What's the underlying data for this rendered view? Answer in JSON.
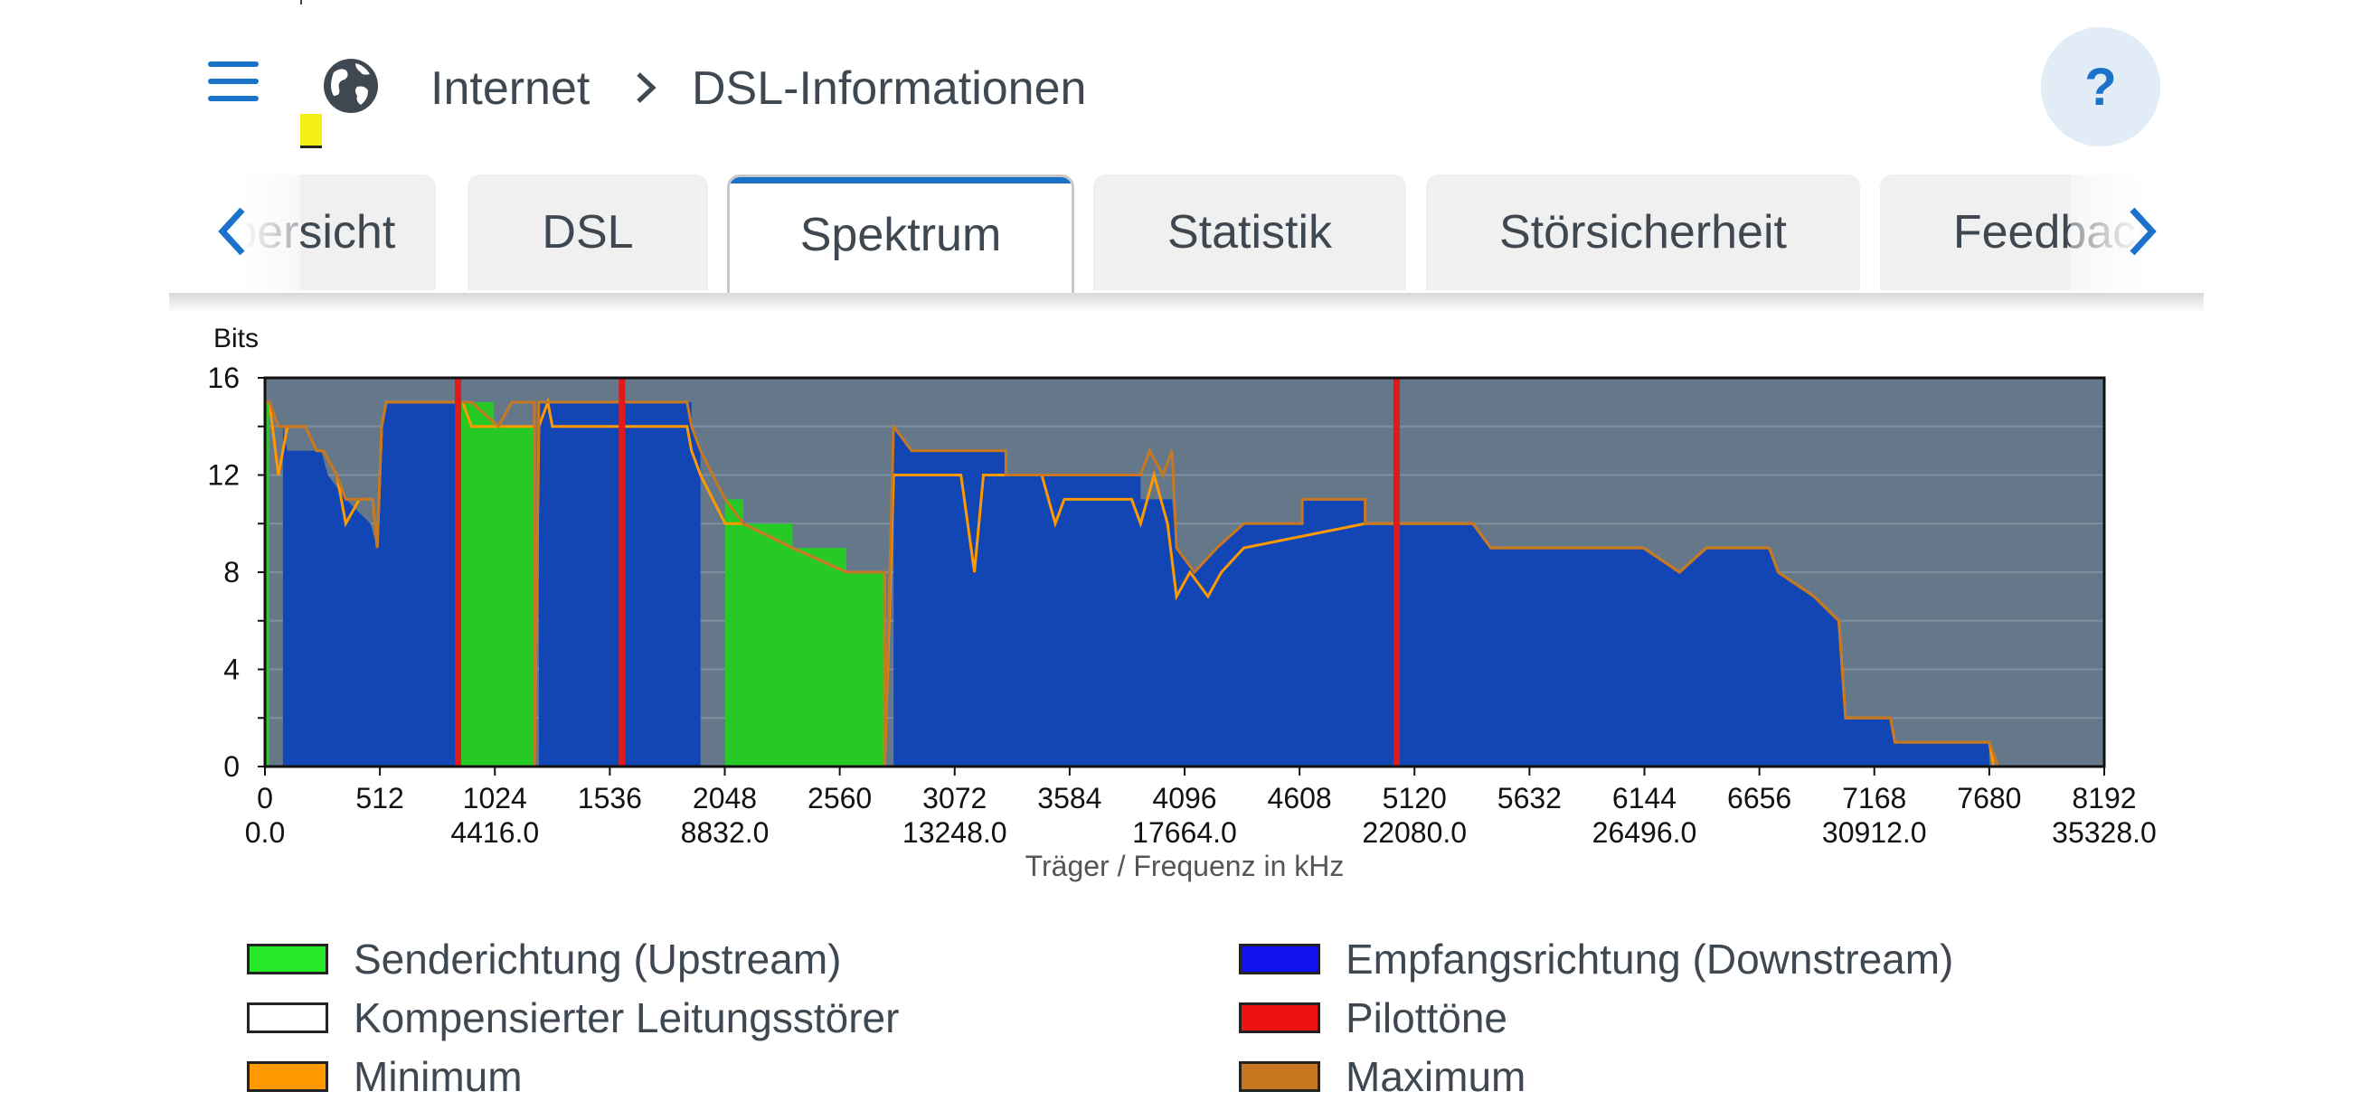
{
  "header": {
    "breadcrumb_home": "Internet",
    "breadcrumb_current": "DSL-Informationen",
    "help_label": "?"
  },
  "tabs": [
    {
      "label": "Übersicht",
      "active": false
    },
    {
      "label": "DSL",
      "active": false
    },
    {
      "label": "Spektrum",
      "active": true
    },
    {
      "label": "Statistik",
      "active": false
    },
    {
      "label": "Störsicherheit",
      "active": false
    },
    {
      "label": "Feedback",
      "active": false
    }
  ],
  "icons": [
    "menu-icon",
    "globe-icon",
    "chevron-right-icon",
    "chevron-left-icon",
    "help-icon"
  ],
  "colors": {
    "accent": "#1b73c9",
    "plot_bg": "#64788a",
    "upstream": "#27c927",
    "downstream": "#1246b4",
    "pilot": "#e01a1a",
    "minimum": "#ff9900",
    "maximum": "#c87820"
  },
  "chart_data": {
    "type": "area",
    "title": "",
    "ylabel": "Bits",
    "xlabel": "Träger / Frequenz in kHz",
    "xlim": [
      0,
      8192
    ],
    "ylim": [
      0,
      16
    ],
    "y_ticks": [
      "0",
      "4",
      "8",
      "12",
      "16"
    ],
    "x_ticks": [
      "0",
      "512",
      "1024",
      "1536",
      "2048",
      "2560",
      "3072",
      "3584",
      "4096",
      "4608",
      "5120",
      "5632",
      "6144",
      "6656",
      "7168",
      "7680",
      "8192"
    ],
    "freq_ticks": [
      {
        "carrier": 0,
        "label": "0.0"
      },
      {
        "carrier": 1024,
        "label": "4416.0"
      },
      {
        "carrier": 2048,
        "label": "8832.0"
      },
      {
        "carrier": 3072,
        "label": "13248.0"
      },
      {
        "carrier": 4096,
        "label": "17664.0"
      },
      {
        "carrier": 5120,
        "label": "22080.0"
      },
      {
        "carrier": 6144,
        "label": "26496.0"
      },
      {
        "carrier": 7168,
        "label": "30912.0"
      },
      {
        "carrier": 8192,
        "label": "35328.0"
      }
    ],
    "series": [
      {
        "name": "Sendererichtung (Upstream)",
        "role": "upstream",
        "segments": [
          [
            [
              0,
              15
            ],
            [
              20,
              15
            ],
            [
              20,
              0
            ],
            [
              0,
              0
            ]
          ],
          [
            [
              870,
              15
            ],
            [
              1020,
              15
            ],
            [
              1020,
              14
            ],
            [
              1200,
              14
            ],
            [
              1200,
              0
            ],
            [
              870,
              0
            ]
          ],
          [
            [
              2050,
              11
            ],
            [
              2130,
              11
            ],
            [
              2130,
              10
            ],
            [
              2350,
              10
            ],
            [
              2350,
              9
            ],
            [
              2590,
              9
            ],
            [
              2590,
              8
            ],
            [
              2760,
              8
            ],
            [
              2760,
              0
            ],
            [
              2050,
              0
            ]
          ]
        ]
      },
      {
        "name": "Empfangsrichtung (Downstream)",
        "role": "downstream",
        "segments": [
          [
            [
              80,
              14
            ],
            [
              100,
              13
            ],
            [
              250,
              13
            ],
            [
              280,
              12
            ],
            [
              360,
              11
            ],
            [
              470,
              10
            ],
            [
              500,
              9
            ],
            [
              520,
              14
            ],
            [
              540,
              15
            ],
            [
              860,
              15
            ],
            [
              860,
              0
            ],
            [
              80,
              0
            ]
          ],
          [
            [
              1220,
              15
            ],
            [
              1900,
              15
            ],
            [
              1900,
              14
            ],
            [
              1940,
              13
            ],
            [
              1940,
              0
            ],
            [
              1220,
              0
            ]
          ],
          [
            [
              2800,
              14
            ],
            [
              2880,
              13
            ],
            [
              3300,
              13
            ],
            [
              3300,
              12
            ],
            [
              3900,
              12
            ],
            [
              3900,
              11
            ],
            [
              4040,
              11
            ],
            [
              4060,
              9
            ],
            [
              4140,
              8
            ],
            [
              4240,
              9
            ],
            [
              4360,
              10
            ],
            [
              4620,
              10
            ],
            [
              4620,
              11
            ],
            [
              4900,
              11
            ],
            [
              4900,
              10
            ],
            [
              5380,
              10
            ],
            [
              5460,
              9
            ],
            [
              6140,
              9
            ],
            [
              6300,
              8
            ],
            [
              6420,
              9
            ],
            [
              6700,
              9
            ],
            [
              6740,
              8
            ],
            [
              6900,
              7
            ],
            [
              7010,
              6
            ],
            [
              7040,
              2
            ],
            [
              7240,
              2
            ],
            [
              7260,
              1
            ],
            [
              7680,
              1
            ],
            [
              7680,
              0
            ],
            [
              2800,
              0
            ]
          ]
        ]
      },
      {
        "name": "Minimum",
        "role": "min",
        "points": [
          [
            0,
            15
          ],
          [
            20,
            15
          ],
          [
            60,
            12
          ],
          [
            100,
            14
          ],
          [
            180,
            14
          ],
          [
            230,
            13
          ],
          [
            260,
            13
          ],
          [
            320,
            12
          ],
          [
            360,
            10
          ],
          [
            420,
            11
          ],
          [
            480,
            11
          ],
          [
            500,
            9
          ],
          [
            520,
            14
          ],
          [
            540,
            15
          ],
          [
            860,
            15
          ],
          [
            880,
            15
          ],
          [
            920,
            14
          ],
          [
            1040,
            14
          ],
          [
            1100,
            14
          ],
          [
            1200,
            14
          ],
          [
            1200,
            0
          ],
          [
            1220,
            14
          ],
          [
            1260,
            15
          ],
          [
            1280,
            14
          ],
          [
            1880,
            14
          ],
          [
            1900,
            13
          ],
          [
            1940,
            12
          ],
          [
            2050,
            10
          ],
          [
            2130,
            10
          ],
          [
            2350,
            9
          ],
          [
            2590,
            8
          ],
          [
            2760,
            8
          ],
          [
            2760,
            0
          ],
          [
            2800,
            12
          ],
          [
            3100,
            12
          ],
          [
            3160,
            8
          ],
          [
            3200,
            12
          ],
          [
            3460,
            12
          ],
          [
            3520,
            10
          ],
          [
            3560,
            11
          ],
          [
            3860,
            11
          ],
          [
            3900,
            10
          ],
          [
            3960,
            12
          ],
          [
            4020,
            10
          ],
          [
            4060,
            7
          ],
          [
            4120,
            8
          ],
          [
            4200,
            7
          ],
          [
            4260,
            8
          ],
          [
            4360,
            9
          ],
          [
            4900,
            10
          ],
          [
            5380,
            10
          ],
          [
            5460,
            9
          ],
          [
            6140,
            9
          ],
          [
            6300,
            8
          ],
          [
            6420,
            9
          ],
          [
            6700,
            9
          ],
          [
            6740,
            8
          ],
          [
            6900,
            7
          ],
          [
            7010,
            6
          ],
          [
            7040,
            2
          ],
          [
            7240,
            2
          ],
          [
            7260,
            1
          ],
          [
            7680,
            1
          ],
          [
            7700,
            0
          ],
          [
            8192,
            0
          ]
        ]
      },
      {
        "name": "Maximum",
        "role": "max",
        "points": [
          [
            0,
            15
          ],
          [
            20,
            15
          ],
          [
            60,
            14
          ],
          [
            100,
            14
          ],
          [
            180,
            14
          ],
          [
            230,
            13
          ],
          [
            260,
            13
          ],
          [
            320,
            12
          ],
          [
            360,
            11
          ],
          [
            420,
            11
          ],
          [
            480,
            11
          ],
          [
            500,
            9
          ],
          [
            520,
            14
          ],
          [
            540,
            15
          ],
          [
            860,
            15
          ],
          [
            880,
            15
          ],
          [
            920,
            15
          ],
          [
            1040,
            14
          ],
          [
            1100,
            15
          ],
          [
            1200,
            15
          ],
          [
            1200,
            0
          ],
          [
            1220,
            15
          ],
          [
            1260,
            15
          ],
          [
            1280,
            15
          ],
          [
            1880,
            15
          ],
          [
            1900,
            14
          ],
          [
            1940,
            13
          ],
          [
            2050,
            11
          ],
          [
            2130,
            10
          ],
          [
            2350,
            9
          ],
          [
            2590,
            8
          ],
          [
            2760,
            8
          ],
          [
            2760,
            0
          ],
          [
            2800,
            14
          ],
          [
            2880,
            13
          ],
          [
            3300,
            13
          ],
          [
            3300,
            12
          ],
          [
            3900,
            12
          ],
          [
            3940,
            13
          ],
          [
            4000,
            12
          ],
          [
            4040,
            13
          ],
          [
            4060,
            9
          ],
          [
            4140,
            8
          ],
          [
            4240,
            9
          ],
          [
            4360,
            10
          ],
          [
            4620,
            10
          ],
          [
            4620,
            11
          ],
          [
            4900,
            11
          ],
          [
            4900,
            10
          ],
          [
            5380,
            10
          ],
          [
            5460,
            9
          ],
          [
            6140,
            9
          ],
          [
            6300,
            8
          ],
          [
            6420,
            9
          ],
          [
            6700,
            9
          ],
          [
            6740,
            8
          ],
          [
            6900,
            7
          ],
          [
            7010,
            6
          ],
          [
            7040,
            2
          ],
          [
            7240,
            2
          ],
          [
            7260,
            1
          ],
          [
            7680,
            1
          ],
          [
            7720,
            0
          ],
          [
            8192,
            0
          ]
        ]
      }
    ],
    "pilot_tones": [
      860,
      1590,
      5040
    ]
  },
  "legend": {
    "items": [
      {
        "label": "Senderichtung (Upstream)",
        "color": "#27e827"
      },
      {
        "label": "Empfangsrichtung (Downstream)",
        "color": "#1212ee"
      },
      {
        "label": "Kompensierter Leitungsstörer",
        "color": "#ffffff"
      },
      {
        "label": "Pilottöne",
        "color": "#ee1212"
      },
      {
        "label": "Minimum",
        "color": "#ff9900"
      },
      {
        "label": "Maximum",
        "color": "#c87820"
      }
    ]
  }
}
